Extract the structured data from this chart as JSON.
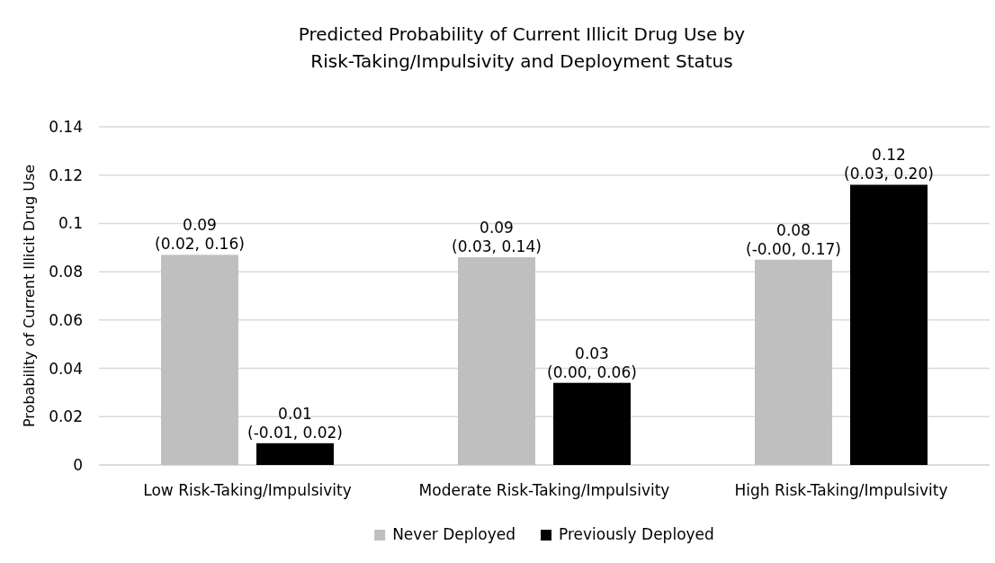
{
  "chart_data": {
    "type": "bar",
    "title": "Predicted Probability of Current Illicit Drug Use by Risk-Taking/Impulsivity and Deployment Status",
    "ylabel": "Probability of Current Illicit Drug Use",
    "categories": [
      "Low Risk-Taking/Impulsivity",
      "Moderate Risk-Taking/Impulsivity",
      "High Risk-Taking/Impulsivity"
    ],
    "series": [
      {
        "name": "Never Deployed",
        "color": "#bfbfbf",
        "values": [
          0.087,
          0.086,
          0.085
        ],
        "value_labels": [
          "0.09\n(0.02, 0.16)",
          "0.09\n(0.03, 0.14)",
          "0.08\n(-0.00, 0.17)"
        ]
      },
      {
        "name": "Previously Deployed",
        "color": "#000000",
        "values": [
          0.009,
          0.034,
          0.116
        ],
        "value_labels": [
          "0.01\n(-0.01, 0.02)",
          "0.03\n(0.00, 0.06)",
          "0.12\n(0.03, 0.20)"
        ]
      }
    ],
    "ylim": [
      0,
      0.14
    ],
    "yticks": [
      0,
      0.02,
      0.04,
      0.06,
      0.08,
      0.1,
      0.12,
      0.14
    ],
    "grid": "y",
    "legend": "bottom"
  }
}
